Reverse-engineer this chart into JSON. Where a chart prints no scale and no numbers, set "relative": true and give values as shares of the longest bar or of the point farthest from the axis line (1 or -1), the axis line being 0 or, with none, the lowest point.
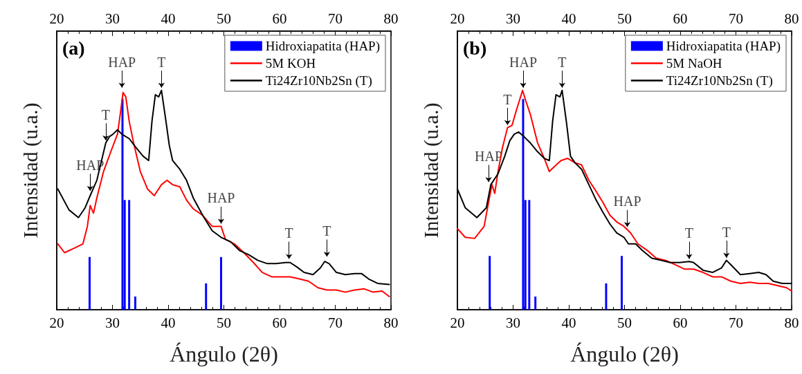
{
  "chart_data": [
    {
      "type": "line",
      "xlabel": "Ángulo (2θ)",
      "ylabel": "Intensidad (u.a.)",
      "xlim": [
        20,
        80
      ],
      "xticks": [
        20,
        30,
        40,
        50,
        60,
        70,
        80
      ],
      "x2lim": [
        20,
        80
      ],
      "x2ticks": [
        20,
        30,
        40,
        50,
        60,
        70,
        80
      ],
      "relative": true,
      "tick_labels": "x",
      "legend": "top right",
      "line_style": "solid",
      "annotations": [
        "(a)",
        {
          "text": "HAP",
          "x": 26.0,
          "y": 0.53
        },
        {
          "text": "T",
          "x": 28.8,
          "y": 0.76
        },
        {
          "text": "HAP",
          "x": 31.7,
          "y": 1.0
        },
        {
          "text": "T",
          "x": 38.8,
          "y": 1.0
        },
        {
          "text": "HAP",
          "x": 49.5,
          "y": 0.38
        },
        {
          "text": "T",
          "x": 61.7,
          "y": 0.22
        },
        {
          "text": "T",
          "x": 68.5,
          "y": 0.23
        }
      ],
      "series": [
        {
          "name": "Hidroxiapatita (HAP)",
          "type": "bar",
          "color": "#0000ff",
          "x": [
            25.9,
            31.8,
            32.2,
            33.0,
            34.1,
            46.8,
            49.5
          ],
          "values": [
            0.24,
            0.96,
            0.5,
            0.5,
            0.06,
            0.12,
            0.24
          ]
        },
        {
          "name": "5M KOH",
          "color": "#ff0000",
          "x": [
            20.2,
            21.4,
            23.1,
            24.7,
            25.5,
            26.0,
            26.6,
            27.2,
            28.4,
            29.7,
            30.9,
            31.5,
            31.9,
            32.4,
            33.0,
            33.8,
            35.0,
            36.3,
            37.5,
            38.8,
            39.8,
            40.8,
            42.1,
            43.3,
            44.5,
            46.2,
            47.9,
            49.5,
            50.3,
            51.9,
            53.6,
            55.3,
            56.9,
            58.6,
            60.2,
            61.9,
            63.6,
            65.2,
            66.9,
            68.5,
            70.2,
            71.8,
            73.5,
            75.2,
            76.8,
            78.4,
            79.7
          ],
          "values": [
            0.3,
            0.26,
            0.28,
            0.3,
            0.38,
            0.475,
            0.44,
            0.51,
            0.63,
            0.72,
            0.8,
            0.91,
            0.99,
            0.97,
            0.86,
            0.76,
            0.63,
            0.55,
            0.52,
            0.57,
            0.59,
            0.57,
            0.56,
            0.5,
            0.46,
            0.43,
            0.38,
            0.38,
            0.32,
            0.3,
            0.26,
            0.215,
            0.17,
            0.15,
            0.15,
            0.15,
            0.14,
            0.13,
            0.1,
            0.09,
            0.09,
            0.08,
            0.09,
            0.095,
            0.08,
            0.085,
            0.06
          ]
        },
        {
          "name": "Ti24Zr10Nb2Sn (T)",
          "color": "#000000",
          "x": [
            20.2,
            22.2,
            23.9,
            25.1,
            26.0,
            27.2,
            28.8,
            29.5,
            30.1,
            30.9,
            31.7,
            33.0,
            34.2,
            35.5,
            36.5,
            37.1,
            37.7,
            38.3,
            38.8,
            39.6,
            40.2,
            40.8,
            42.1,
            43.3,
            44.5,
            46.2,
            47.9,
            49.5,
            51.2,
            52.8,
            54.5,
            56.1,
            57.8,
            59.4,
            61.1,
            61.9,
            63.1,
            64.4,
            66.0,
            67.3,
            68.1,
            68.9,
            70.2,
            71.8,
            73.5,
            74.7,
            76.0,
            77.6,
            79.7
          ],
          "values": [
            0.55,
            0.455,
            0.42,
            0.465,
            0.52,
            0.59,
            0.76,
            0.79,
            0.8,
            0.82,
            0.8,
            0.78,
            0.74,
            0.7,
            0.68,
            0.86,
            0.98,
            0.97,
            1.0,
            0.86,
            0.75,
            0.68,
            0.64,
            0.59,
            0.51,
            0.43,
            0.36,
            0.33,
            0.31,
            0.27,
            0.25,
            0.225,
            0.21,
            0.21,
            0.215,
            0.215,
            0.195,
            0.17,
            0.16,
            0.19,
            0.22,
            0.21,
            0.17,
            0.16,
            0.165,
            0.165,
            0.14,
            0.12,
            0.115
          ]
        }
      ]
    },
    {
      "type": "line",
      "xlabel": "Ángulo (2θ)",
      "ylabel": "Intensidad (u.a.)",
      "xlim": [
        20,
        80
      ],
      "xticks": [
        20,
        30,
        40,
        50,
        60,
        70,
        80
      ],
      "x2lim": [
        20,
        80
      ],
      "x2ticks": [
        20,
        30,
        40,
        50,
        60,
        70,
        80
      ],
      "relative": true,
      "tick_labels": "x",
      "legend": "top right",
      "line_style": "solid",
      "annotations": [
        "(b)",
        {
          "text": "HAP",
          "x": 25.6,
          "y": 0.57
        },
        {
          "text": "T",
          "x": 29.0,
          "y": 0.83
        },
        {
          "text": "HAP",
          "x": 31.8,
          "y": 1.0
        },
        {
          "text": "T",
          "x": 38.8,
          "y": 1.0
        },
        {
          "text": "HAP",
          "x": 50.5,
          "y": 0.365
        },
        {
          "text": "T",
          "x": 61.6,
          "y": 0.22
        },
        {
          "text": "T",
          "x": 68.3,
          "y": 0.225
        }
      ],
      "series": [
        {
          "name": "Hidroxiapatita (HAP)",
          "type": "bar",
          "color": "#0000ff",
          "x": [
            25.8,
            31.8,
            32.2,
            32.9,
            34.0,
            46.7,
            49.5
          ],
          "values": [
            0.245,
            0.96,
            0.5,
            0.5,
            0.06,
            0.12,
            0.245
          ]
        },
        {
          "name": "5M NaOH",
          "color": "#ff0000",
          "x": [
            20.0,
            21.4,
            23.1,
            24.8,
            25.6,
            26.2,
            26.7,
            27.3,
            28.1,
            29.0,
            29.8,
            30.6,
            31.7,
            32.3,
            33.1,
            34.4,
            35.6,
            36.5,
            37.3,
            38.6,
            39.8,
            41.1,
            42.3,
            43.6,
            44.9,
            46.1,
            47.4,
            48.6,
            49.9,
            51.1,
            52.4,
            54.1,
            55.7,
            57.4,
            59.1,
            60.8,
            62.4,
            64.1,
            65.8,
            67.4,
            69.1,
            70.8,
            72.5,
            74.1,
            75.8,
            77.4,
            79.1,
            80.0
          ],
          "values": [
            0.37,
            0.33,
            0.325,
            0.38,
            0.49,
            0.57,
            0.53,
            0.63,
            0.74,
            0.83,
            0.84,
            0.91,
            1.0,
            0.95,
            0.89,
            0.76,
            0.69,
            0.63,
            0.65,
            0.68,
            0.69,
            0.67,
            0.66,
            0.59,
            0.54,
            0.49,
            0.43,
            0.4,
            0.38,
            0.35,
            0.3,
            0.27,
            0.235,
            0.225,
            0.205,
            0.185,
            0.185,
            0.17,
            0.15,
            0.15,
            0.13,
            0.12,
            0.125,
            0.12,
            0.12,
            0.11,
            0.1,
            0.085
          ]
        },
        {
          "name": "Ti24Zr10Nb2Sn (T)",
          "color": "#000000",
          "x": [
            20.0,
            21.4,
            23.5,
            25.2,
            26.0,
            27.3,
            28.5,
            29.4,
            30.2,
            31.0,
            31.9,
            33.1,
            34.4,
            35.6,
            36.5,
            37.1,
            37.7,
            38.4,
            38.8,
            39.6,
            40.3,
            41.1,
            42.3,
            43.6,
            44.9,
            46.1,
            47.4,
            48.6,
            49.9,
            50.7,
            52.0,
            53.2,
            54.9,
            56.6,
            58.2,
            59.9,
            61.6,
            62.4,
            64.1,
            65.8,
            67.4,
            68.3,
            69.1,
            70.8,
            72.5,
            74.1,
            75.4,
            76.7,
            78.3,
            80.0
          ],
          "values": [
            0.55,
            0.465,
            0.42,
            0.465,
            0.57,
            0.62,
            0.7,
            0.77,
            0.8,
            0.81,
            0.79,
            0.76,
            0.72,
            0.69,
            0.68,
            0.86,
            0.98,
            0.97,
            1.0,
            0.85,
            0.7,
            0.67,
            0.64,
            0.57,
            0.5,
            0.445,
            0.39,
            0.35,
            0.33,
            0.3,
            0.3,
            0.27,
            0.235,
            0.225,
            0.215,
            0.215,
            0.22,
            0.215,
            0.18,
            0.17,
            0.19,
            0.225,
            0.205,
            0.16,
            0.165,
            0.17,
            0.16,
            0.13,
            0.12,
            0.12
          ]
        }
      ]
    }
  ]
}
